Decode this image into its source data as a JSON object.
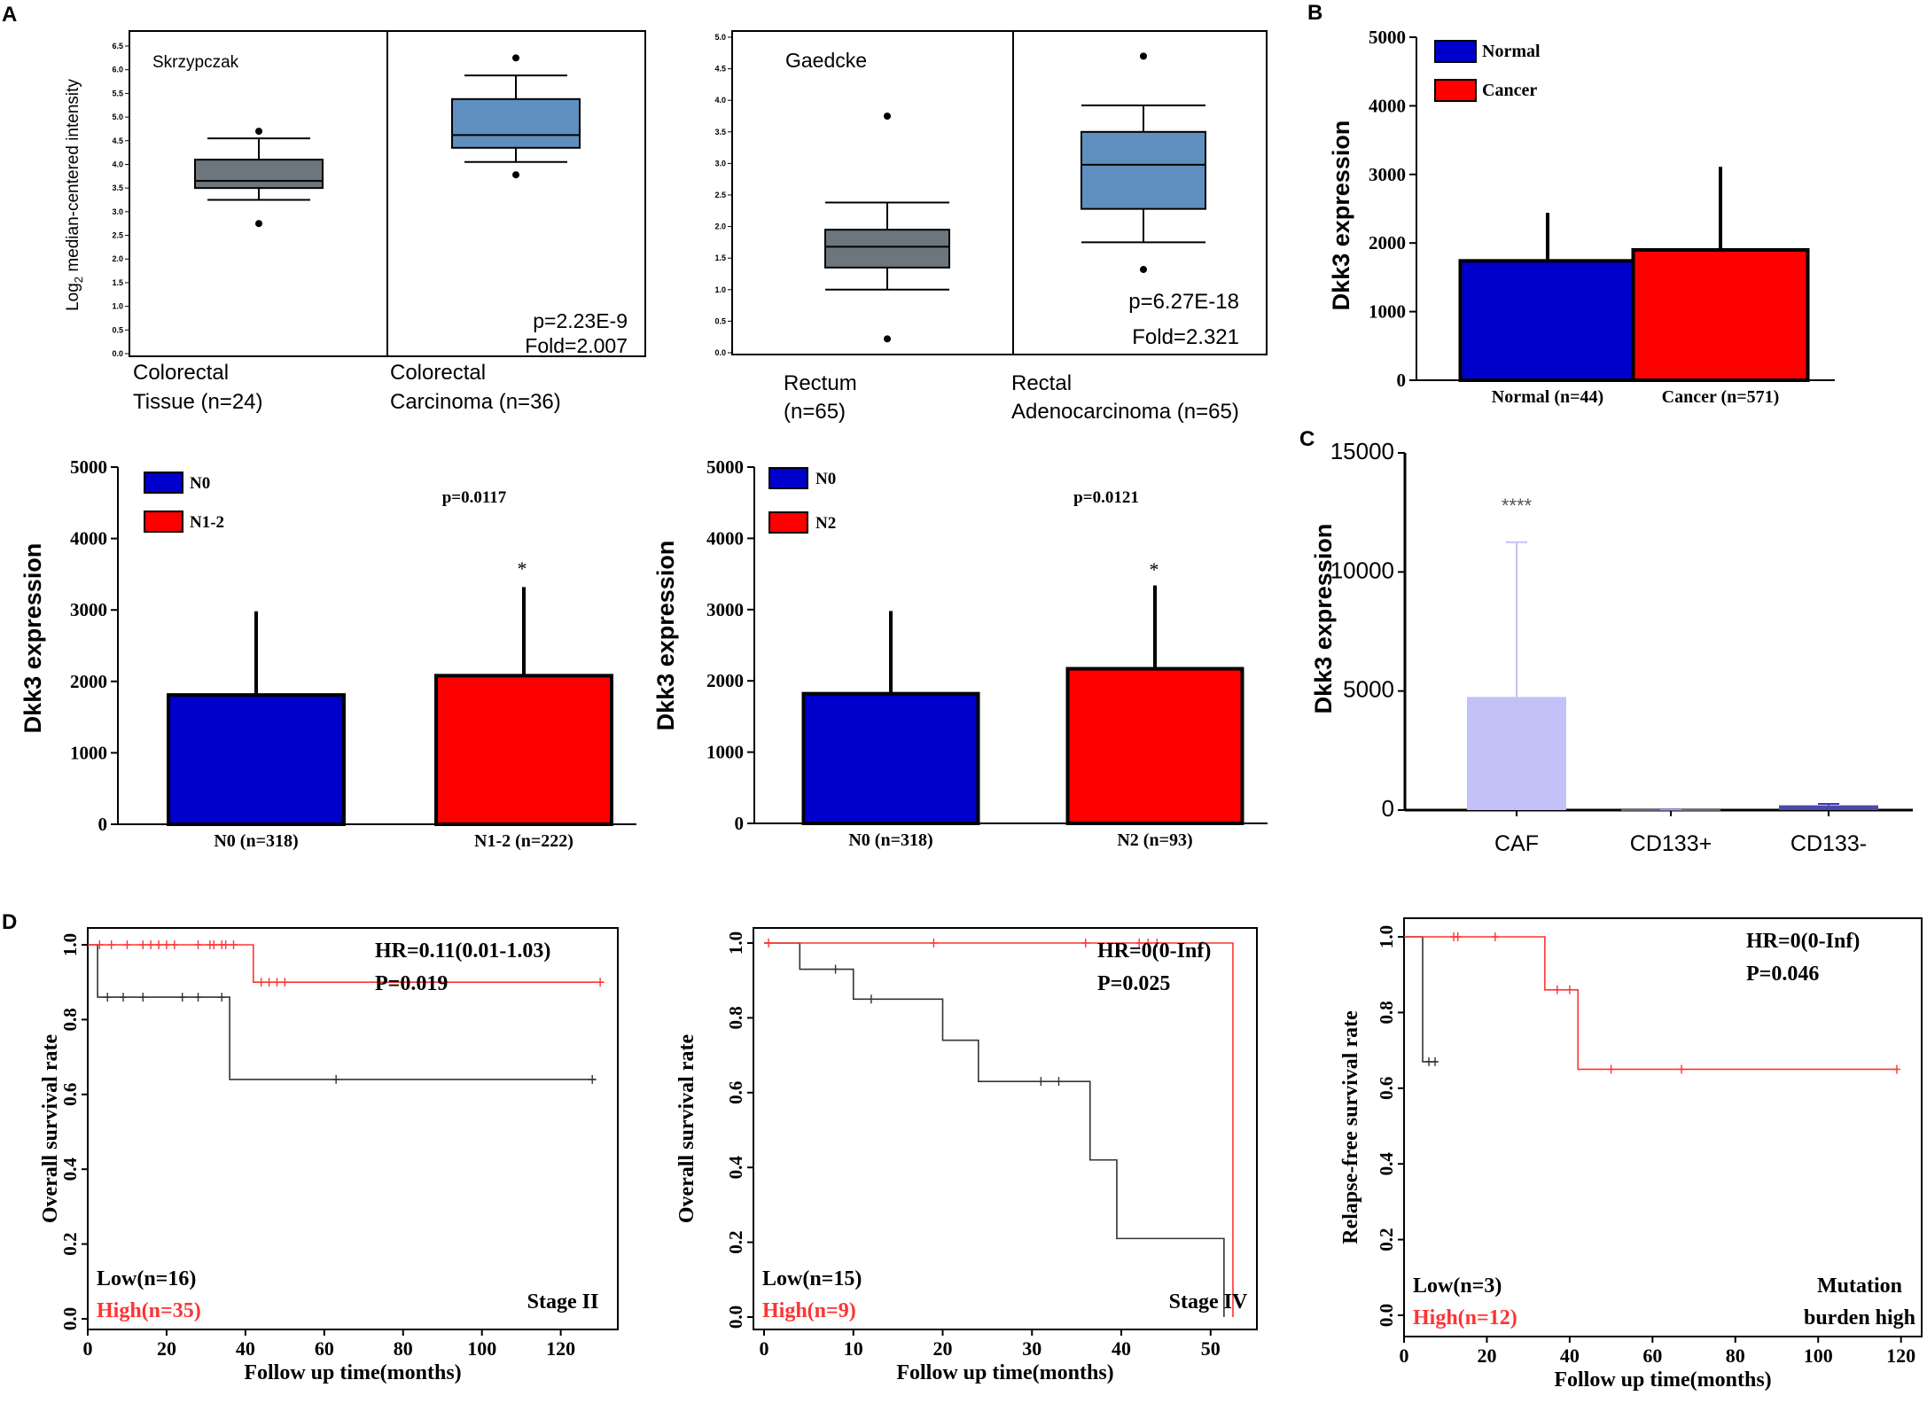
{
  "panel_labels": {
    "A": "A",
    "B": "B",
    "C": "C",
    "D": "D"
  },
  "colors": {
    "normal_blue": "#0000cc",
    "cancer_red": "#ff0000",
    "box_gray": "#6d767c",
    "box_blue": "#5f8fbf",
    "caf_lavender": "#c2c2f8",
    "low_curve": "#333333",
    "high_curve": "#ff3333"
  },
  "chart_data": [
    {
      "id": "A1",
      "type": "box",
      "title": "Skrzypczak",
      "ylabel_prefix": "Log",
      "ylabel_sub": "2",
      "ylabel_rest": " median-centered intensity",
      "ylim": [
        0,
        6.5
      ],
      "yticks": [
        "0.0",
        "0.5",
        "1.0",
        "1.5",
        "2.0",
        "2.5",
        "3.0",
        "3.5",
        "4.0",
        "4.5",
        "5.0",
        "5.5",
        "6.0",
        "6.5"
      ],
      "groups": [
        {
          "label_line1": "Colorectal",
          "label_line2": "Tissue (n=24)",
          "whisker_low": 3.25,
          "q1": 3.5,
          "median": 3.65,
          "q3": 4.1,
          "whisker_high": 4.55,
          "outliers": [
            2.75,
            4.7
          ]
        },
        {
          "label_line1": "Colorectal",
          "label_line2": "Carcinoma (n=36)",
          "whisker_low": 4.05,
          "q1": 4.35,
          "median": 4.62,
          "q3": 5.38,
          "whisker_high": 5.88,
          "outliers": [
            3.78,
            6.25
          ]
        }
      ],
      "stats_p": "p=2.23E-9",
      "stats_fold": "Fold=2.007"
    },
    {
      "id": "A2",
      "type": "box",
      "title": "Gaedcke",
      "ylim": [
        0,
        5.0
      ],
      "yticks": [
        "0.0",
        "0.5",
        "1.0",
        "1.5",
        "2.0",
        "2.5",
        "3.0",
        "3.5",
        "4.0",
        "4.5",
        "5.0"
      ],
      "groups": [
        {
          "label_line1": "Rectum",
          "label_line2": "(n=65)",
          "whisker_low": 1.0,
          "q1": 1.35,
          "median": 1.68,
          "q3": 1.95,
          "whisker_high": 2.38,
          "outliers": [
            0.22,
            3.75
          ]
        },
        {
          "label_line1": "Rectal",
          "label_line2": "Adenocarcinoma (n=65)",
          "whisker_low": 1.75,
          "q1": 2.28,
          "median": 2.98,
          "q3": 3.5,
          "whisker_high": 3.92,
          "outliers": [
            1.32,
            4.7
          ]
        }
      ],
      "stats_p": "p=6.27E-18",
      "stats_fold": "Fold=2.321"
    },
    {
      "id": "B",
      "type": "bar",
      "ylabel": "Dkk3 expression",
      "ylim": [
        0,
        5000
      ],
      "yticks": [
        "0",
        "1000",
        "2000",
        "3000",
        "4000",
        "5000"
      ],
      "legend": [
        "Normal",
        "Cancer"
      ],
      "categories": [
        "Normal (n=44)",
        "Cancer (n=571)"
      ],
      "values": [
        1740,
        1900
      ],
      "errors_upper": [
        2440,
        3110
      ]
    },
    {
      "id": "A3",
      "type": "bar",
      "ylabel": "Dkk3 expression",
      "ylim": [
        0,
        5000
      ],
      "yticks": [
        "0",
        "1000",
        "2000",
        "3000",
        "4000",
        "5000"
      ],
      "legend": [
        "N0",
        "N1-2"
      ],
      "categories": [
        "N0 (n=318)",
        "N1-2 (n=222)"
      ],
      "values": [
        1810,
        2080
      ],
      "errors_upper": [
        2980,
        3320
      ],
      "p_text": "p=0.0117",
      "sig": "*"
    },
    {
      "id": "A4",
      "type": "bar",
      "ylabel": "Dkk3 expression",
      "ylim": [
        0,
        5000
      ],
      "yticks": [
        "0",
        "1000",
        "2000",
        "3000",
        "4000",
        "5000"
      ],
      "legend": [
        "N0",
        "N2"
      ],
      "categories": [
        "N0 (n=318)",
        "N2 (n=93)"
      ],
      "values": [
        1820,
        2170
      ],
      "errors_upper": [
        2980,
        3340
      ],
      "p_text": "p=0.0121",
      "sig": "*"
    },
    {
      "id": "C",
      "type": "bar",
      "ylabel": "Dkk3 expression",
      "ylim": [
        0,
        15000
      ],
      "yticks": [
        "0",
        "5000",
        "10000",
        "15000"
      ],
      "categories": [
        "CAF",
        "CD133+",
        "CD133-"
      ],
      "values": [
        4750,
        20,
        200
      ],
      "errors_upper": [
        11250,
        40,
        260
      ],
      "sig": "****"
    },
    {
      "id": "D1",
      "type": "line",
      "ylabel": "Overall survival rate",
      "xlabel": "Follow up time(months)",
      "xlim": [
        0,
        132
      ],
      "xticks": [
        "0",
        "20",
        "40",
        "60",
        "80",
        "100",
        "120"
      ],
      "ylim": [
        0,
        1.0
      ],
      "yticks": [
        "0.0",
        "0.2",
        "0.4",
        "0.6",
        "0.8",
        "1.0"
      ],
      "hr": "HR=0.11(0.01-1.03)",
      "p": "P=0.019",
      "low_label": "Low(n=16)",
      "high_label": "High(n=35)",
      "stage": "Stage II",
      "stage_line2": "",
      "series": [
        {
          "name": "Low",
          "steps": [
            [
              0,
              1.0
            ],
            [
              2.5,
              1.0
            ],
            [
              2.5,
              0.86
            ],
            [
              36,
              0.86
            ],
            [
              36,
              0.64
            ],
            [
              129,
              0.64
            ]
          ],
          "censors": [
            [
              5,
              0.86
            ],
            [
              9,
              0.86
            ],
            [
              14,
              0.86
            ],
            [
              24,
              0.86
            ],
            [
              28,
              0.86
            ],
            [
              34,
              0.86
            ],
            [
              63,
              0.64
            ],
            [
              128,
              0.64
            ]
          ]
        },
        {
          "name": "High",
          "steps": [
            [
              0,
              1.0
            ],
            [
              42,
              1.0
            ],
            [
              42,
              0.9
            ],
            [
              131,
              0.9
            ]
          ],
          "censors": [
            [
              3,
              1.0
            ],
            [
              6,
              1.0
            ],
            [
              10,
              1.0
            ],
            [
              14,
              1.0
            ],
            [
              16,
              1.0
            ],
            [
              18,
              1.0
            ],
            [
              20,
              1.0
            ],
            [
              22,
              1.0
            ],
            [
              28,
              1.0
            ],
            [
              31,
              1.0
            ],
            [
              32,
              1.0
            ],
            [
              34,
              1.0
            ],
            [
              35,
              1.0
            ],
            [
              37,
              1.0
            ],
            [
              44,
              0.9
            ],
            [
              46,
              0.9
            ],
            [
              48,
              0.9
            ],
            [
              50,
              0.9
            ],
            [
              130,
              0.9
            ]
          ]
        }
      ]
    },
    {
      "id": "D2",
      "type": "line",
      "ylabel": "Overall survival rate",
      "xlabel": "Follow up time(months)",
      "xlim": [
        0,
        53
      ],
      "xticks": [
        "0",
        "10",
        "20",
        "30",
        "40",
        "50"
      ],
      "ylim": [
        0,
        1.0
      ],
      "yticks": [
        "0.0",
        "0.2",
        "0.4",
        "0.6",
        "0.8",
        "1.0"
      ],
      "hr": "HR=0(0-Inf)",
      "p": "P=0.025",
      "low_label": "Low(n=15)",
      "high_label": "High(n=9)",
      "stage": "Stage IV",
      "stage_line2": "",
      "series": [
        {
          "name": "Low",
          "steps": [
            [
              0,
              1.0
            ],
            [
              4,
              1.0
            ],
            [
              4,
              0.93
            ],
            [
              10,
              0.93
            ],
            [
              10,
              0.85
            ],
            [
              20,
              0.85
            ],
            [
              20,
              0.74
            ],
            [
              24,
              0.74
            ],
            [
              24,
              0.63
            ],
            [
              36.5,
              0.63
            ],
            [
              36.5,
              0.42
            ],
            [
              39.5,
              0.42
            ],
            [
              39.5,
              0.21
            ],
            [
              51.5,
              0.21
            ],
            [
              51.5,
              0.0
            ]
          ],
          "censors": [
            [
              8,
              0.93
            ],
            [
              12,
              0.85
            ],
            [
              31,
              0.63
            ],
            [
              33,
              0.63
            ]
          ]
        },
        {
          "name": "High",
          "steps": [
            [
              0,
              1.0
            ],
            [
              52.5,
              1.0
            ],
            [
              52.5,
              0.0
            ]
          ],
          "censors": [
            [
              0.5,
              1.0
            ],
            [
              19,
              1.0
            ],
            [
              36,
              1.0
            ],
            [
              42,
              1.0
            ],
            [
              43,
              1.0
            ],
            [
              44,
              1.0
            ]
          ]
        }
      ]
    },
    {
      "id": "D3",
      "type": "line",
      "ylabel": "Relapse-free survival rate",
      "xlabel": "Follow up time(months)",
      "xlim": [
        0,
        122
      ],
      "xticks": [
        "0",
        "20",
        "40",
        "60",
        "80",
        "100",
        "120"
      ],
      "ylim": [
        0,
        1.0
      ],
      "yticks": [
        "0.0",
        "0.2",
        "0.4",
        "0.6",
        "0.8",
        "1.0"
      ],
      "hr": "HR=0(0-Inf)",
      "p": "P=0.046",
      "low_label": "Low(n=3)",
      "high_label": "High(n=12)",
      "stage": "Mutation",
      "stage_line2": "burden high",
      "series": [
        {
          "name": "Low",
          "steps": [
            [
              0,
              1.0
            ],
            [
              4.5,
              1.0
            ],
            [
              4.5,
              0.67
            ],
            [
              8,
              0.67
            ]
          ],
          "censors": [
            [
              6,
              0.67
            ],
            [
              7.5,
              0.67
            ]
          ]
        },
        {
          "name": "High",
          "steps": [
            [
              0,
              1.0
            ],
            [
              34,
              1.0
            ],
            [
              34,
              0.86
            ],
            [
              42,
              0.86
            ],
            [
              42,
              0.65
            ],
            [
              119,
              0.65
            ]
          ],
          "censors": [
            [
              12,
              1.0
            ],
            [
              13,
              1.0
            ],
            [
              22,
              1.0
            ],
            [
              37,
              0.86
            ],
            [
              40,
              0.86
            ],
            [
              50,
              0.65
            ],
            [
              67,
              0.65
            ],
            [
              119,
              0.65
            ]
          ]
        }
      ]
    }
  ]
}
